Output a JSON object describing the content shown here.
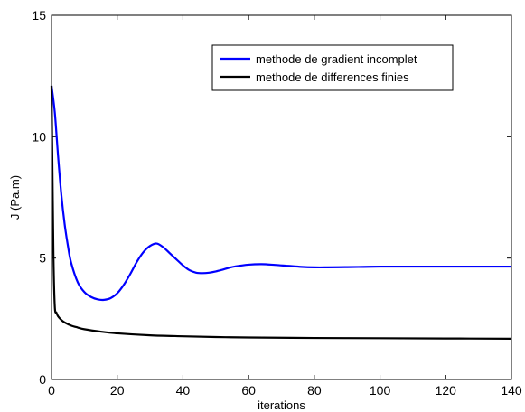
{
  "chart_data": {
    "type": "line",
    "title": "",
    "xlabel": "iterations",
    "ylabel": "J (Pa.m)",
    "xlim": [
      0,
      140
    ],
    "ylim": [
      0,
      15
    ],
    "xticks": [
      0,
      20,
      40,
      60,
      80,
      100,
      120,
      140
    ],
    "yticks": [
      0,
      5,
      10,
      15
    ],
    "grid": false,
    "legend_position": "top-right",
    "series": [
      {
        "name": "methode de gradient incomplet",
        "color": "#0000ff",
        "x": [
          0,
          1,
          2,
          3,
          4,
          5,
          6,
          8,
          10,
          12,
          14,
          16,
          18,
          20,
          22,
          24,
          26,
          28,
          30,
          32,
          34,
          36,
          38,
          40,
          42,
          44,
          46,
          48,
          50,
          52,
          54,
          56,
          60,
          64,
          68,
          72,
          76,
          80,
          84,
          90,
          95,
          100,
          110,
          120,
          130,
          140
        ],
        "y": [
          12.1,
          11.0,
          9.2,
          7.6,
          6.4,
          5.5,
          4.8,
          4.0,
          3.6,
          3.4,
          3.3,
          3.28,
          3.35,
          3.55,
          3.9,
          4.35,
          4.85,
          5.25,
          5.5,
          5.6,
          5.45,
          5.2,
          4.95,
          4.7,
          4.5,
          4.4,
          4.38,
          4.4,
          4.45,
          4.52,
          4.6,
          4.66,
          4.73,
          4.75,
          4.72,
          4.68,
          4.64,
          4.62,
          4.62,
          4.63,
          4.64,
          4.65,
          4.65,
          4.65,
          4.65,
          4.65
        ]
      },
      {
        "name": "methode de differences finies",
        "color": "#000000",
        "x": [
          0,
          0.3,
          0.6,
          1,
          1.5,
          2,
          3,
          4,
          6,
          8,
          10,
          15,
          20,
          30,
          40,
          50,
          60,
          80,
          100,
          120,
          140
        ],
        "y": [
          12.1,
          8.5,
          5.0,
          3.0,
          2.75,
          2.6,
          2.45,
          2.35,
          2.22,
          2.14,
          2.07,
          1.97,
          1.9,
          1.82,
          1.78,
          1.75,
          1.73,
          1.71,
          1.7,
          1.69,
          1.68
        ]
      }
    ]
  }
}
